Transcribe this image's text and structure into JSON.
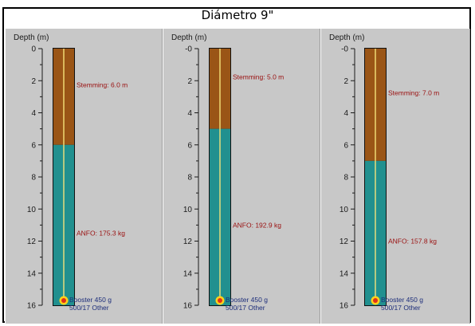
{
  "title": "Diámetro  9\"",
  "colors": {
    "stemming": "#9a5516",
    "explosive": "#21908f",
    "detonator_line": "#f4e27a",
    "booster_outer": "#ffd21a",
    "booster_inner": "#e0301a",
    "panel_bg": "#c8c8c8"
  },
  "chart_data": [
    {
      "type": "borehole-column",
      "ylabel": "Depth (m)",
      "yticks": [
        "0",
        "2",
        "4",
        "6",
        "8",
        "10",
        "12",
        "14",
        "16"
      ],
      "ylim": [
        0,
        16
      ],
      "stemming_depth": 6.0,
      "stemming_label": "Stemming: 6.0 m",
      "explosive_label": "ANFO: 175.3 kg",
      "booster_label_1": "Booster 450 g",
      "booster_label_2": "500/17 Other"
    },
    {
      "type": "borehole-column",
      "ylabel": "Depth (m)",
      "yticks": [
        "-0",
        "2",
        "4",
        "6",
        "8",
        "10",
        "12",
        "14",
        "16"
      ],
      "ylim": [
        0,
        16
      ],
      "stemming_depth": 5.0,
      "stemming_label": "Stemming: 5.0 m",
      "explosive_label": "ANFO: 192.9 kg",
      "booster_label_1": "Booster 450 g",
      "booster_label_2": "500/17 Other"
    },
    {
      "type": "borehole-column",
      "ylabel": "Depth (m)",
      "yticks": [
        "-0",
        "2",
        "4",
        "6",
        "8",
        "10",
        "12",
        "14",
        "16"
      ],
      "ylim": [
        0,
        16
      ],
      "stemming_depth": 7.0,
      "stemming_label": "Stemming: 7.0 m",
      "explosive_label": "ANFO: 157.8 kg",
      "booster_label_1": "Booster 450 g",
      "booster_label_2": "500/17 Other"
    }
  ]
}
